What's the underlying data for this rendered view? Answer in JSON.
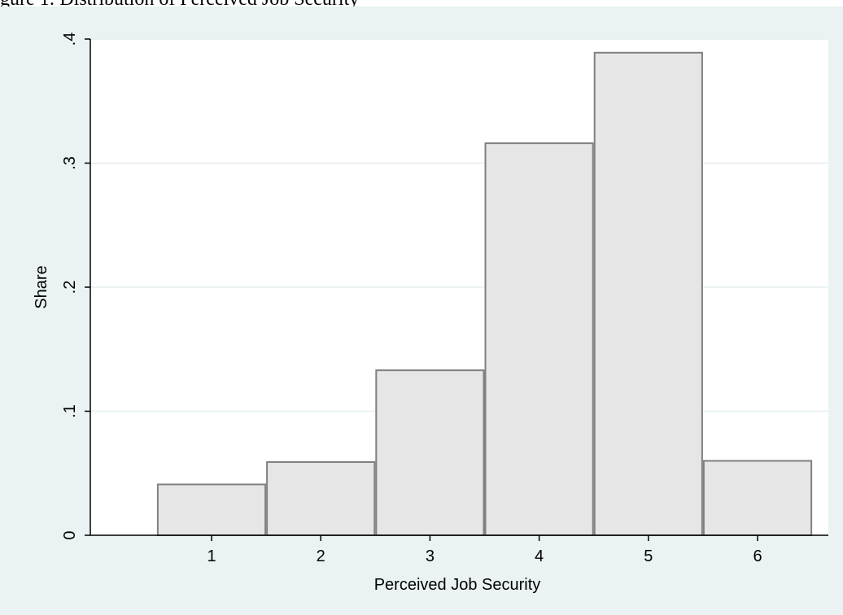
{
  "caption": {
    "text": "gure 1: Distribution of Perceived Job Security"
  },
  "chart_data": {
    "type": "bar",
    "categories": [
      "1",
      "2",
      "3",
      "4",
      "5",
      "6"
    ],
    "values": [
      0.041,
      0.059,
      0.133,
      0.316,
      0.389,
      0.06
    ],
    "xlabel": "Perceived Job Security",
    "ylabel": "Share",
    "ylim": [
      0,
      0.4
    ],
    "yticks": [
      0,
      0.1,
      0.2,
      0.3,
      0.4
    ],
    "ytick_labels": [
      "0",
      ".1",
      ".2",
      ".3",
      ".4"
    ],
    "xticks": [
      1,
      2,
      3,
      4,
      5,
      6
    ],
    "grid": true,
    "colors": {
      "panel_background": "#eaf2f3",
      "plot_background": "#ffffff",
      "bar_fill": "#e6e6e6",
      "bar_stroke": "#808080",
      "gridline": "#e6eef0",
      "axis": "#000000"
    }
  }
}
